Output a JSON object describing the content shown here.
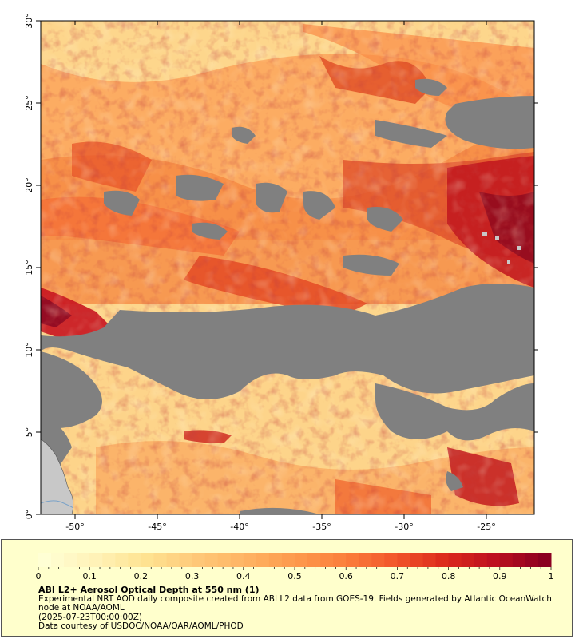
{
  "map": {
    "lon_ticks": [
      "-50°",
      "-45°",
      "-40°",
      "-35°",
      "-30°",
      "-25°"
    ],
    "lat_ticks": [
      "0°",
      "5°",
      "10°",
      "15°",
      "20°",
      "25°",
      "30°"
    ],
    "colors": {
      "no_data": "#808080",
      "land": "#c8c8c8",
      "background": "#fdd890"
    }
  },
  "legend": {
    "title": "ABI L2+ Aerosol Optical Depth at 550 nm (1)",
    "line1": "Experimental NRT AOD daily composite created from ABI L2 data from GOES-19. Fields generated by Atlantic OceanWatch node at NOAA/AOML",
    "line2": "(2025-07-23T00:00:00Z)",
    "line3": "Data courtesy of USDOC/NOAA/OAR/AOML/PHOD",
    "colorbar_labels": [
      "0",
      "0.1",
      "0.2",
      "0.3",
      "0.4",
      "0.5",
      "0.6",
      "0.7",
      "0.8",
      "0.9",
      "1"
    ],
    "colorbar_colors": [
      "#ffffd4",
      "#fff2b8",
      "#fee391",
      "#fec97a",
      "#feb463",
      "#fd9a4d",
      "#fb7f3c",
      "#f2562b",
      "#dc2a1c",
      "#bd0f1f",
      "#8b0020"
    ]
  }
}
